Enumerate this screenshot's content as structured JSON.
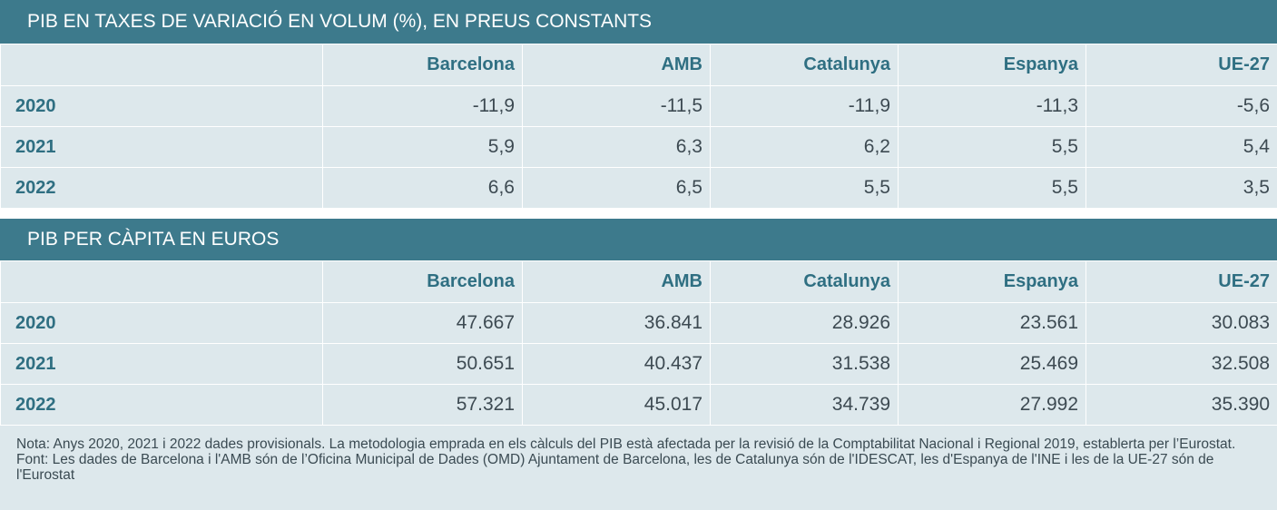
{
  "table1": {
    "title": "PIB EN TAXES DE VARIACIÓ EN VOLUM (%), EN PREUS CONSTANTS",
    "columns": [
      "",
      "Barcelona",
      "AMB",
      "Catalunya",
      "Espanya",
      "UE-27"
    ],
    "rows": [
      {
        "year": "2020",
        "values": [
          "-11,9",
          "-11,5",
          "-11,9",
          "-11,3",
          "-5,6"
        ]
      },
      {
        "year": "2021",
        "values": [
          "5,9",
          "6,3",
          "6,2",
          "5,5",
          "5,4"
        ]
      },
      {
        "year": "2022",
        "values": [
          "6,6",
          "6,5",
          "5,5",
          "5,5",
          "3,5"
        ]
      }
    ]
  },
  "table2": {
    "title": "PIB PER CÀPITA EN EUROS",
    "columns": [
      "",
      "Barcelona",
      "AMB",
      "Catalunya",
      "Espanya",
      "UE-27"
    ],
    "rows": [
      {
        "year": "2020",
        "values": [
          "47.667",
          "36.841",
          "28.926",
          "23.561",
          "30.083"
        ]
      },
      {
        "year": "2021",
        "values": [
          "50.651",
          "40.437",
          "31.538",
          "25.469",
          "32.508"
        ]
      },
      {
        "year": "2022",
        "values": [
          "57.321",
          "45.017",
          "34.739",
          "27.992",
          "35.390"
        ]
      }
    ]
  },
  "notes": {
    "nota": "Nota: Anys 2020, 2021 i 2022 dades provisionals. La metodologia emprada en els càlculs del PIB està afectada per la revisió de la Comptabilitat Nacional i Regional 2019, establerta per l’Eurostat.",
    "font": "Font: Les dades de Barcelona i l'AMB són de l’Oficina Municipal de Dades (OMD) Ajuntament de Barcelona, les de Catalunya són de l'IDESCAT, les d'Espanya de l'INE i les de la UE-27 són de l'Eurostat"
  },
  "colors": {
    "header_bg": "#3d7a8c",
    "cell_bg": "#dde8ec",
    "accent_text": "#2f6f82"
  }
}
